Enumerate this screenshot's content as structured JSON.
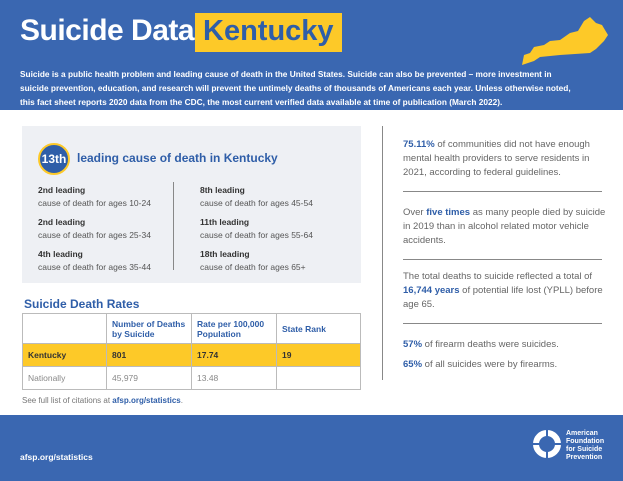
{
  "header": {
    "title": "Suicide Data:",
    "state": "Kentucky",
    "intro": "Suicide is a public health problem and leading cause of death in the United States. Suicide can also be prevented – more investment in suicide prevention, education, and research will prevent the untimely deaths of thousands of Americans each year. Unless otherwise noted, this fact sheet reports 2020 data from the CDC, the most current verified data available at time of publication (March 2022)."
  },
  "colors": {
    "blue": "#3a67b1",
    "yellow": "#fdc928"
  },
  "rank": {
    "value": "13th",
    "label": "leading cause of death in Kentucky"
  },
  "leading": [
    {
      "rank": "2nd leading",
      "desc": "cause of death for ages 10-24"
    },
    {
      "rank": "2nd leading",
      "desc": "cause of death for ages 25-34"
    },
    {
      "rank": "4th leading",
      "desc": "cause of death for ages 35-44"
    },
    {
      "rank": "8th leading",
      "desc": "cause of death for ages 45-54"
    },
    {
      "rank": "11th leading",
      "desc": "cause of death for ages 55-64"
    },
    {
      "rank": "18th leading",
      "desc": "cause of death for ages 65+"
    }
  ],
  "rates": {
    "title": "Suicide Death Rates",
    "headers": [
      "",
      "Number of Deaths by Suicide",
      "Rate per 100,000 Population",
      "State Rank"
    ],
    "rows": [
      [
        "Kentucky",
        "801",
        "17.74",
        "19"
      ],
      [
        "Nationally",
        "45,979",
        "13.48",
        ""
      ]
    ]
  },
  "citation": {
    "text": "See full list of citations at ",
    "link": "afsp.org/statistics",
    "end": "."
  },
  "facts": [
    {
      "pre": "",
      "bold": "75.11%",
      "post": " of communities did not have enough mental health providers to serve residents in 2021, according to federal guidelines."
    },
    {
      "pre": "Over ",
      "bold": "five times",
      "post": " as many people died by suicide in 2019 than in alcohol related motor vehicle accidents."
    },
    {
      "pre": "The total deaths to suicide reflected a total of ",
      "bold": "16,744 years",
      "post": " of potential life lost (YPLL) before age 65."
    },
    {
      "pre": "",
      "bold": "57%",
      "post": " of firearm deaths were suicides."
    },
    {
      "pre": "",
      "bold": "65%",
      "post": " of all suicides were by firearms."
    }
  ],
  "footer": {
    "url": "afsp.org/statistics",
    "logo": [
      "American",
      "Foundation",
      "for Suicide",
      "Prevention"
    ]
  }
}
